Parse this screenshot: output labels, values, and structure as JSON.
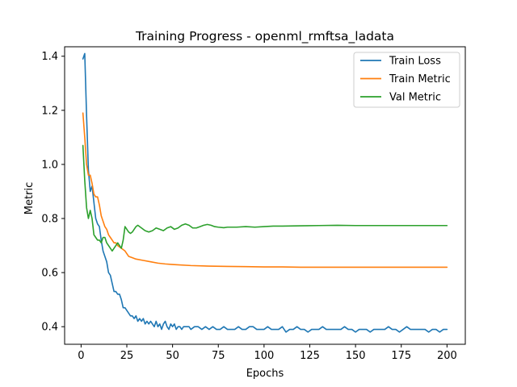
{
  "chart_data": {
    "type": "line",
    "title": "Training Progress - openml_rmftsa_ladata",
    "xlabel": "Epochs",
    "ylabel": "Metric",
    "xlim": [
      -9,
      210
    ],
    "ylim": [
      0.335,
      1.435
    ],
    "xticks": [
      0,
      25,
      50,
      75,
      100,
      125,
      150,
      175,
      200
    ],
    "yticks": [
      0.4,
      0.6,
      0.8,
      1.0,
      1.2,
      1.4
    ],
    "xtick_labels": [
      "0",
      "25",
      "50",
      "75",
      "100",
      "125",
      "150",
      "175",
      "200"
    ],
    "ytick_labels": [
      "0.4",
      "0.6",
      "0.8",
      "1.0",
      "1.2",
      "1.4"
    ],
    "grid": false,
    "legend_position": "top-right",
    "series": [
      {
        "name": "Train Loss",
        "color": "#1f77b4",
        "points": [
          [
            1,
            1.39
          ],
          [
            2,
            1.41
          ],
          [
            3,
            1.18
          ],
          [
            4,
            0.98
          ],
          [
            5,
            0.9
          ],
          [
            6,
            0.92
          ],
          [
            7,
            0.86
          ],
          [
            8,
            0.8
          ],
          [
            9,
            0.78
          ],
          [
            10,
            0.77
          ],
          [
            11,
            0.72
          ],
          [
            12,
            0.68
          ],
          [
            13,
            0.66
          ],
          [
            14,
            0.64
          ],
          [
            15,
            0.6
          ],
          [
            16,
            0.59
          ],
          [
            17,
            0.56
          ],
          [
            18,
            0.53
          ],
          [
            19,
            0.53
          ],
          [
            20,
            0.52
          ],
          [
            21,
            0.52
          ],
          [
            22,
            0.5
          ],
          [
            23,
            0.47
          ],
          [
            24,
            0.47
          ],
          [
            25,
            0.46
          ],
          [
            26,
            0.45
          ],
          [
            27,
            0.44
          ],
          [
            28,
            0.44
          ],
          [
            29,
            0.43
          ],
          [
            30,
            0.44
          ],
          [
            31,
            0.42
          ],
          [
            32,
            0.43
          ],
          [
            33,
            0.42
          ],
          [
            34,
            0.43
          ],
          [
            35,
            0.41
          ],
          [
            36,
            0.42
          ],
          [
            37,
            0.41
          ],
          [
            38,
            0.42
          ],
          [
            39,
            0.41
          ],
          [
            40,
            0.4
          ],
          [
            41,
            0.42
          ],
          [
            42,
            0.4
          ],
          [
            43,
            0.41
          ],
          [
            44,
            0.39
          ],
          [
            45,
            0.41
          ],
          [
            46,
            0.42
          ],
          [
            47,
            0.4
          ],
          [
            48,
            0.39
          ],
          [
            49,
            0.41
          ],
          [
            50,
            0.4
          ],
          [
            51,
            0.41
          ],
          [
            52,
            0.39
          ],
          [
            53,
            0.4
          ],
          [
            54,
            0.4
          ],
          [
            55,
            0.39
          ],
          [
            56,
            0.4
          ],
          [
            57,
            0.4
          ],
          [
            58,
            0.4
          ],
          [
            59,
            0.4
          ],
          [
            60,
            0.39
          ],
          [
            62,
            0.4
          ],
          [
            64,
            0.4
          ],
          [
            66,
            0.39
          ],
          [
            68,
            0.4
          ],
          [
            70,
            0.39
          ],
          [
            72,
            0.4
          ],
          [
            74,
            0.39
          ],
          [
            76,
            0.39
          ],
          [
            78,
            0.4
          ],
          [
            80,
            0.39
          ],
          [
            82,
            0.39
          ],
          [
            84,
            0.39
          ],
          [
            86,
            0.4
          ],
          [
            88,
            0.39
          ],
          [
            90,
            0.39
          ],
          [
            92,
            0.4
          ],
          [
            94,
            0.4
          ],
          [
            96,
            0.39
          ],
          [
            98,
            0.39
          ],
          [
            100,
            0.39
          ],
          [
            102,
            0.4
          ],
          [
            104,
            0.39
          ],
          [
            106,
            0.39
          ],
          [
            108,
            0.39
          ],
          [
            110,
            0.4
          ],
          [
            112,
            0.38
          ],
          [
            114,
            0.39
          ],
          [
            116,
            0.39
          ],
          [
            118,
            0.4
          ],
          [
            120,
            0.39
          ],
          [
            122,
            0.39
          ],
          [
            124,
            0.38
          ],
          [
            126,
            0.39
          ],
          [
            128,
            0.39
          ],
          [
            130,
            0.39
          ],
          [
            132,
            0.4
          ],
          [
            134,
            0.39
          ],
          [
            136,
            0.39
          ],
          [
            138,
            0.39
          ],
          [
            140,
            0.39
          ],
          [
            142,
            0.39
          ],
          [
            144,
            0.4
          ],
          [
            146,
            0.39
          ],
          [
            148,
            0.39
          ],
          [
            150,
            0.38
          ],
          [
            152,
            0.39
          ],
          [
            154,
            0.39
          ],
          [
            156,
            0.39
          ],
          [
            158,
            0.38
          ],
          [
            160,
            0.39
          ],
          [
            162,
            0.39
          ],
          [
            164,
            0.39
          ],
          [
            166,
            0.39
          ],
          [
            168,
            0.4
          ],
          [
            170,
            0.39
          ],
          [
            172,
            0.39
          ],
          [
            174,
            0.38
          ],
          [
            176,
            0.39
          ],
          [
            178,
            0.4
          ],
          [
            180,
            0.39
          ],
          [
            182,
            0.39
          ],
          [
            184,
            0.39
          ],
          [
            186,
            0.39
          ],
          [
            188,
            0.39
          ],
          [
            190,
            0.38
          ],
          [
            192,
            0.39
          ],
          [
            194,
            0.39
          ],
          [
            196,
            0.38
          ],
          [
            198,
            0.39
          ],
          [
            200,
            0.39
          ]
        ]
      },
      {
        "name": "Train Metric",
        "color": "#ff7f0e",
        "points": [
          [
            1,
            1.19
          ],
          [
            2,
            1.1
          ],
          [
            3,
            1.0
          ],
          [
            4,
            0.96
          ],
          [
            5,
            0.96
          ],
          [
            6,
            0.93
          ],
          [
            7,
            0.89
          ],
          [
            8,
            0.88
          ],
          [
            9,
            0.88
          ],
          [
            10,
            0.85
          ],
          [
            11,
            0.81
          ],
          [
            12,
            0.79
          ],
          [
            13,
            0.77
          ],
          [
            14,
            0.76
          ],
          [
            15,
            0.74
          ],
          [
            16,
            0.73
          ],
          [
            17,
            0.72
          ],
          [
            18,
            0.71
          ],
          [
            19,
            0.71
          ],
          [
            20,
            0.7
          ],
          [
            22,
            0.69
          ],
          [
            24,
            0.68
          ],
          [
            26,
            0.66
          ],
          [
            28,
            0.655
          ],
          [
            30,
            0.65
          ],
          [
            34,
            0.645
          ],
          [
            38,
            0.64
          ],
          [
            42,
            0.635
          ],
          [
            46,
            0.632
          ],
          [
            50,
            0.63
          ],
          [
            60,
            0.626
          ],
          [
            70,
            0.624
          ],
          [
            80,
            0.623
          ],
          [
            90,
            0.622
          ],
          [
            100,
            0.621
          ],
          [
            110,
            0.621
          ],
          [
            120,
            0.62
          ],
          [
            140,
            0.62
          ],
          [
            160,
            0.62
          ],
          [
            180,
            0.62
          ],
          [
            200,
            0.62
          ]
        ]
      },
      {
        "name": "Val Metric",
        "color": "#2ca02c",
        "points": [
          [
            1,
            1.07
          ],
          [
            2,
            0.94
          ],
          [
            3,
            0.84
          ],
          [
            4,
            0.8
          ],
          [
            5,
            0.83
          ],
          [
            6,
            0.8
          ],
          [
            7,
            0.74
          ],
          [
            8,
            0.73
          ],
          [
            9,
            0.72
          ],
          [
            10,
            0.72
          ],
          [
            11,
            0.71
          ],
          [
            12,
            0.73
          ],
          [
            13,
            0.73
          ],
          [
            14,
            0.71
          ],
          [
            15,
            0.7
          ],
          [
            16,
            0.69
          ],
          [
            17,
            0.68
          ],
          [
            18,
            0.69
          ],
          [
            19,
            0.7
          ],
          [
            20,
            0.71
          ],
          [
            21,
            0.7
          ],
          [
            22,
            0.69
          ],
          [
            23,
            0.72
          ],
          [
            24,
            0.77
          ],
          [
            25,
            0.76
          ],
          [
            26,
            0.75
          ],
          [
            27,
            0.745
          ],
          [
            28,
            0.75
          ],
          [
            30,
            0.77
          ],
          [
            31,
            0.775
          ],
          [
            33,
            0.765
          ],
          [
            35,
            0.755
          ],
          [
            37,
            0.75
          ],
          [
            39,
            0.755
          ],
          [
            41,
            0.765
          ],
          [
            43,
            0.76
          ],
          [
            45,
            0.755
          ],
          [
            47,
            0.765
          ],
          [
            49,
            0.77
          ],
          [
            51,
            0.76
          ],
          [
            53,
            0.765
          ],
          [
            55,
            0.775
          ],
          [
            57,
            0.78
          ],
          [
            59,
            0.775
          ],
          [
            61,
            0.765
          ],
          [
            63,
            0.765
          ],
          [
            65,
            0.77
          ],
          [
            67,
            0.775
          ],
          [
            69,
            0.778
          ],
          [
            71,
            0.775
          ],
          [
            73,
            0.77
          ],
          [
            75,
            0.768
          ],
          [
            78,
            0.766
          ],
          [
            80,
            0.768
          ],
          [
            85,
            0.768
          ],
          [
            90,
            0.77
          ],
          [
            95,
            0.768
          ],
          [
            100,
            0.77
          ],
          [
            105,
            0.772
          ],
          [
            110,
            0.772
          ],
          [
            120,
            0.773
          ],
          [
            130,
            0.774
          ],
          [
            140,
            0.775
          ],
          [
            150,
            0.774
          ],
          [
            160,
            0.774
          ],
          [
            170,
            0.774
          ],
          [
            180,
            0.774
          ],
          [
            190,
            0.774
          ],
          [
            200,
            0.774
          ]
        ]
      }
    ]
  }
}
